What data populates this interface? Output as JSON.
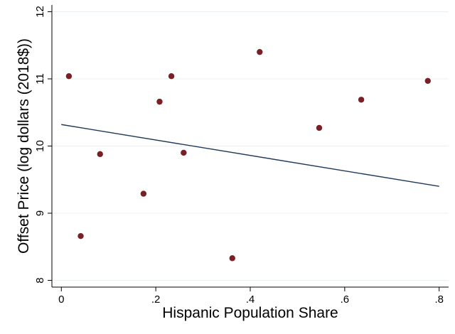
{
  "chart_data": {
    "type": "scatter",
    "xlabel": "Hispanic Population Share",
    "ylabel": "Offset Price (log dollars (2018$))",
    "xlim": [
      -0.02,
      0.82
    ],
    "ylim": [
      7.9,
      12.1
    ],
    "x_ticks": [
      {
        "value": 0,
        "label": "0"
      },
      {
        "value": 0.2,
        "label": ".2"
      },
      {
        "value": 0.4,
        "label": ".4"
      },
      {
        "value": 0.6,
        "label": ".6"
      },
      {
        "value": 0.8,
        "label": ".8"
      }
    ],
    "y_ticks": [
      {
        "value": 8,
        "label": "8"
      },
      {
        "value": 9,
        "label": "9"
      },
      {
        "value": 10,
        "label": "10"
      },
      {
        "value": 11,
        "label": "11"
      },
      {
        "value": 12,
        "label": "12"
      }
    ],
    "grid": "horizontal",
    "points": [
      {
        "x": 0.016,
        "y": 11.04
      },
      {
        "x": 0.041,
        "y": 8.66
      },
      {
        "x": 0.082,
        "y": 9.88
      },
      {
        "x": 0.174,
        "y": 9.29
      },
      {
        "x": 0.208,
        "y": 10.66
      },
      {
        "x": 0.233,
        "y": 11.04
      },
      {
        "x": 0.259,
        "y": 9.9
      },
      {
        "x": 0.362,
        "y": 8.33
      },
      {
        "x": 0.42,
        "y": 11.4
      },
      {
        "x": 0.546,
        "y": 10.27
      },
      {
        "x": 0.635,
        "y": 10.69
      },
      {
        "x": 0.776,
        "y": 10.97
      }
    ],
    "fit_line": {
      "x": [
        0,
        0.8
      ],
      "y": [
        10.32,
        9.4
      ]
    },
    "colors": {
      "points": "#7a1f24",
      "fit_line": "#1f3a5a",
      "grid": "#eaf0f2",
      "axis": "#000000"
    }
  }
}
